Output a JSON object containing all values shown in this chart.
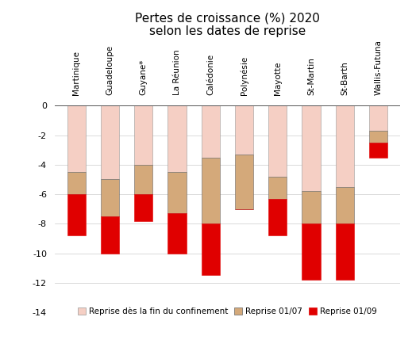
{
  "categories": [
    "Martinique",
    "Guadeloupe",
    "Guyane*",
    "La Réunion",
    "Calédonie",
    "Polynésie",
    "Mayotte",
    "St-Martin",
    "St-Barth",
    "Wallis-Futuna"
  ],
  "title_line1": "Pertes de croissance (%) 2020",
  "title_line2": "selon les dates de reprise",
  "series": {
    "pink": {
      "label": "Reprise dès la fin du confinement",
      "color": "#f5cfc4",
      "values": [
        -4.5,
        -5.0,
        -4.0,
        -4.5,
        -3.5,
        -3.3,
        -4.8,
        -5.8,
        -5.5,
        -1.7
      ]
    },
    "tan": {
      "label": "Reprise 01/07",
      "color": "#d4a97a",
      "values": [
        -1.5,
        -2.5,
        -2.0,
        -2.8,
        -4.5,
        -3.7,
        -1.5,
        -2.2,
        -2.5,
        -0.8
      ]
    },
    "red": {
      "label": "Reprise 01/09",
      "color": "#e00000",
      "values": [
        -2.8,
        -2.5,
        -1.8,
        -2.7,
        -3.5,
        0.0,
        -2.5,
        -3.8,
        -3.8,
        -1.0
      ]
    }
  },
  "ylim": [
    -14,
    0.3
  ],
  "yticks": [
    0,
    -2,
    -4,
    -6,
    -8,
    -10,
    -12,
    -14
  ],
  "bar_width": 0.55,
  "background_color": "#ffffff",
  "title_fontsize": 11,
  "legend_fontsize": 7.5,
  "tick_fontsize": 8,
  "label_fontsize": 7.5
}
